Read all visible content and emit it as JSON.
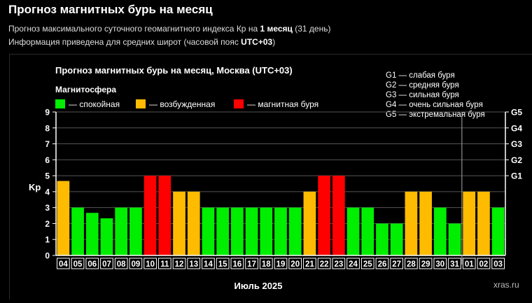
{
  "header": {
    "title": "Прогноз магнитных бурь на месяц",
    "sub1_prefix": "Прогноз максимального суточного геомагнитного индекса Кр на ",
    "sub1_bold": "1 месяц",
    "sub1_suffix": " (31 день)",
    "sub2_prefix": "Информация приведена для средних широт (часовой пояс ",
    "sub2_bold": "UTC+03",
    "sub2_suffix": ")"
  },
  "watermark": "xras.ru",
  "colors": {
    "calm": "#00ee00",
    "excited": "#ffbb00",
    "storm": "#ff0000",
    "axis": "#ffffff",
    "grid": "#555555"
  },
  "chart_data": {
    "type": "bar",
    "title": "Прогноз магнитных бурь на месяц, Москва (UTC+03)",
    "legend_title": "Магнитосфера",
    "legend": [
      {
        "key": "calm",
        "label": "— спокойная"
      },
      {
        "key": "excited",
        "label": "— возбужденная"
      },
      {
        "key": "storm",
        "label": "— магнитная буря"
      }
    ],
    "g_scale_legend": [
      "G1 — слабая буря",
      "G2 — средняя буря",
      "G3 — сильная буря",
      "G4 — очень сильная буря",
      "G5 — экстремальная буря"
    ],
    "ylabel": "Kp",
    "xlabel": "Июль 2025",
    "ylim": [
      0,
      9
    ],
    "y_ticks": [
      0,
      1,
      2,
      3,
      4,
      5,
      6,
      7,
      8,
      9
    ],
    "right_ticks": [
      {
        "kp": 5,
        "label": "G1"
      },
      {
        "kp": 6,
        "label": "G2"
      },
      {
        "kp": 7,
        "label": "G3"
      },
      {
        "kp": 8,
        "label": "G4"
      },
      {
        "kp": 9,
        "label": "G5"
      }
    ],
    "categories": [
      "04",
      "05",
      "06",
      "07",
      "08",
      "09",
      "10",
      "11",
      "12",
      "13",
      "14",
      "15",
      "16",
      "17",
      "18",
      "19",
      "20",
      "21",
      "22",
      "23",
      "24",
      "25",
      "26",
      "27",
      "28",
      "29",
      "30",
      "31",
      "01",
      "02",
      "03"
    ],
    "values": [
      4.67,
      3,
      2.67,
      2.33,
      3,
      3,
      5,
      5,
      4,
      4,
      3,
      3,
      3,
      3,
      3,
      3,
      3,
      4,
      5,
      5,
      3,
      3,
      2,
      2,
      4,
      4,
      3,
      2,
      4,
      4,
      3
    ],
    "levels": [
      "excited",
      "calm",
      "calm",
      "calm",
      "calm",
      "calm",
      "storm",
      "storm",
      "excited",
      "excited",
      "calm",
      "calm",
      "calm",
      "calm",
      "calm",
      "calm",
      "calm",
      "excited",
      "storm",
      "storm",
      "calm",
      "calm",
      "calm",
      "calm",
      "excited",
      "excited",
      "calm",
      "calm",
      "excited",
      "excited",
      "calm"
    ],
    "month_divider_after": "31"
  }
}
